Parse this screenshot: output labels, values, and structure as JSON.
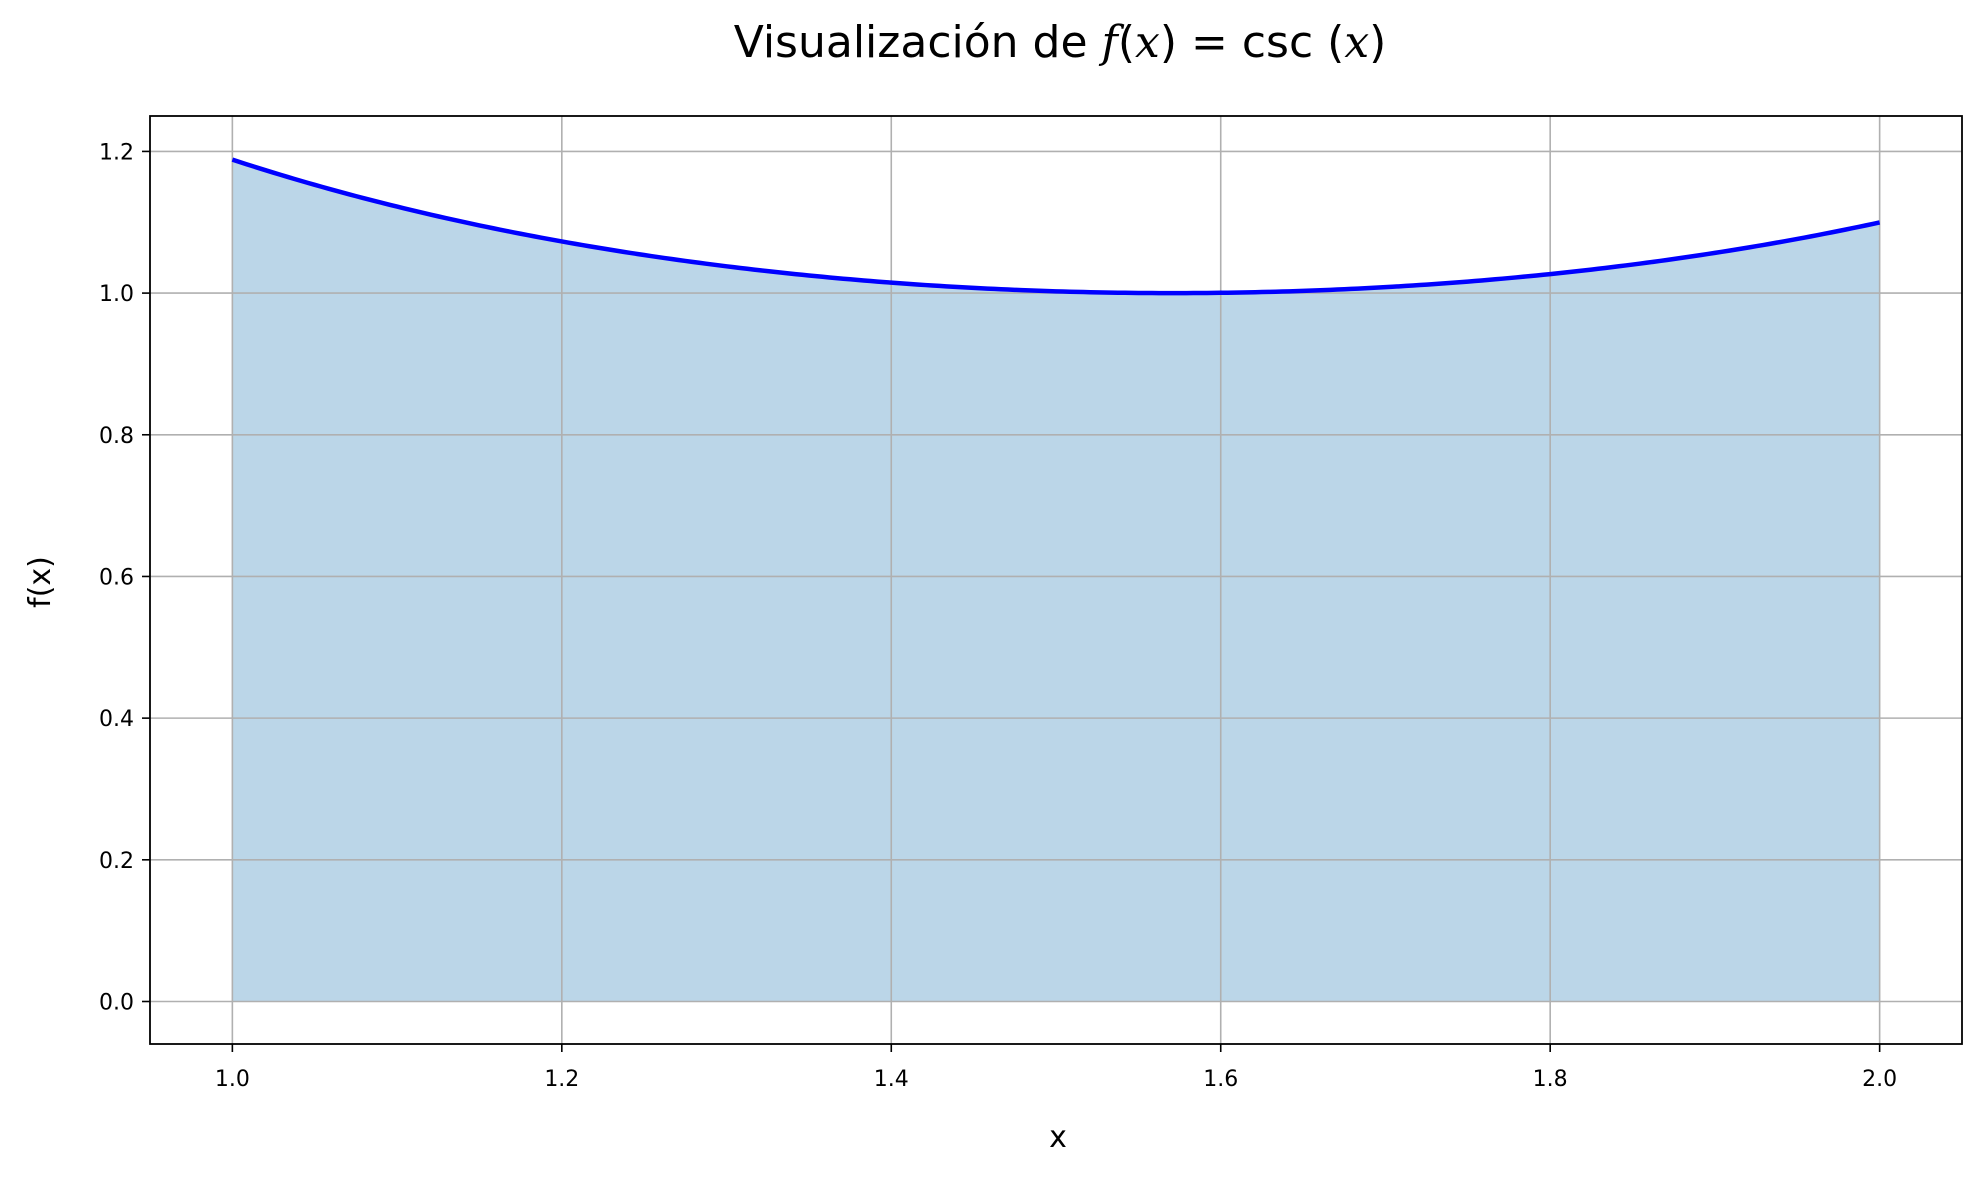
{
  "chart_data": {
    "type": "area",
    "title": {
      "prefix": "Visualización de ",
      "f": "f",
      "open1": "(",
      "x1": "x",
      "close1": ")",
      "eq": " = csc ",
      "open2": "(",
      "x2": "x",
      "close2": ")"
    },
    "xlabel": "x",
    "ylabel": "f(x)",
    "function": "csc(x)",
    "x": [
      1.0,
      1.1,
      1.2,
      1.3,
      1.4,
      1.5,
      1.5708,
      1.6,
      1.7,
      1.8,
      1.9,
      2.0
    ],
    "y": [
      1.1884,
      1.1221,
      1.0729,
      1.0378,
      1.0148,
      1.0025,
      1.0,
      1.0004,
      1.0084,
      1.0269,
      1.057,
      1.0998
    ],
    "xlim": [
      0.95,
      2.05
    ],
    "ylim": [
      -0.06,
      1.25
    ],
    "xticks": [
      1.0,
      1.2,
      1.4,
      1.6,
      1.8,
      2.0
    ],
    "xtick_labels": [
      "1.0",
      "1.2",
      "1.4",
      "1.6",
      "1.8",
      "2.0"
    ],
    "yticks": [
      0.0,
      0.2,
      0.4,
      0.6,
      0.8,
      1.0,
      1.2
    ],
    "ytick_labels": [
      "0.0",
      "0.2",
      "0.4",
      "0.6",
      "0.8",
      "1.0",
      "1.2"
    ],
    "grid": true,
    "line_color": "#0000ff",
    "fill_color": "#1f77b4",
    "fill_opacity": 0.3,
    "grid_color": "#b0b0b0"
  }
}
